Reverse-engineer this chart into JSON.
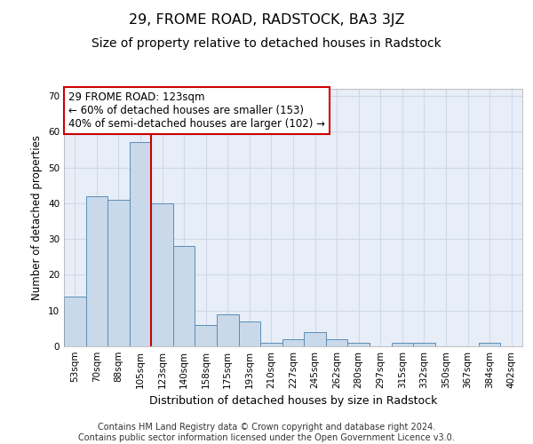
{
  "title": "29, FROME ROAD, RADSTOCK, BA3 3JZ",
  "subtitle": "Size of property relative to detached houses in Radstock",
  "xlabel": "Distribution of detached houses by size in Radstock",
  "ylabel": "Number of detached properties",
  "categories": [
    "53sqm",
    "70sqm",
    "88sqm",
    "105sqm",
    "123sqm",
    "140sqm",
    "158sqm",
    "175sqm",
    "193sqm",
    "210sqm",
    "227sqm",
    "245sqm",
    "262sqm",
    "280sqm",
    "297sqm",
    "315sqm",
    "332sqm",
    "350sqm",
    "367sqm",
    "384sqm",
    "402sqm"
  ],
  "values": [
    14,
    42,
    41,
    57,
    40,
    28,
    6,
    9,
    7,
    1,
    2,
    4,
    2,
    1,
    0,
    1,
    1,
    0,
    0,
    1,
    0
  ],
  "bar_color": "#c9d9ea",
  "bar_edge_color": "#5b8db8",
  "vline_color": "#cc0000",
  "vline_x_index": 4,
  "annotation_line1": "29 FROME ROAD: 123sqm",
  "annotation_line2": "← 60% of detached houses are smaller (153)",
  "annotation_line3": "40% of semi-detached houses are larger (102) →",
  "annotation_box_color": "#ffffff",
  "annotation_box_edge": "#cc0000",
  "ylim": [
    0,
    72
  ],
  "yticks": [
    0,
    10,
    20,
    30,
    40,
    50,
    60,
    70
  ],
  "grid_color": "#d0d8e8",
  "bg_color": "#e8eef7",
  "footer": "Contains HM Land Registry data © Crown copyright and database right 2024.\nContains public sector information licensed under the Open Government Licence v3.0.",
  "title_fontsize": 11.5,
  "subtitle_fontsize": 10,
  "xlabel_fontsize": 9,
  "ylabel_fontsize": 8.5,
  "tick_fontsize": 7.5,
  "annotation_fontsize": 8.5,
  "footer_fontsize": 7
}
